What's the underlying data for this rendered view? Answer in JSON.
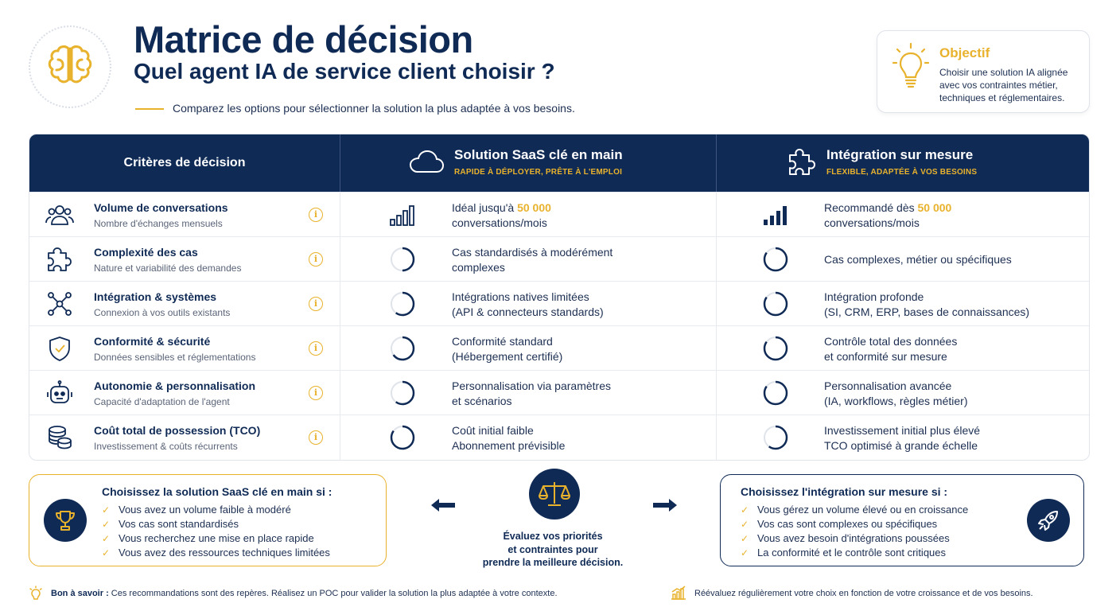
{
  "header": {
    "title": "Matrice de décision",
    "subtitle": "Quel agent IA de service client choisir ?",
    "tagline": "Comparez les options pour sélectionner la solution la plus adaptée à vos besoins.",
    "logo_icon": "brain-icon"
  },
  "objective": {
    "title": "Objectif",
    "text": "Choisir une solution IA alignée avec vos contraintes métier, techniques et réglementaires.",
    "icon": "lightbulb-icon"
  },
  "matrix": {
    "criteria_header": "Critères de décision",
    "saas": {
      "title": "Solution SaaS clé en main",
      "subtitle": "RAPIDE À DÉPLOYER, PRÊTE À L'EMPLOI",
      "icon": "cloud-icon"
    },
    "custom": {
      "title": "Intégration sur mesure",
      "subtitle": "FLEXIBLE, ADAPTÉE À VOS BESOINS",
      "icon": "puzzle-icon"
    },
    "rows": [
      {
        "title": "Volume de conversations",
        "sub": "Nombre d'échanges mensuels",
        "icon": "users-icon",
        "saas_l1": "Idéal jusqu'à ",
        "saas_hl": "50 000",
        "saas_l2": "conversations/mois",
        "custom_l1": "Recommandé dès ",
        "custom_hl": "50 000",
        "custom_l2": "conversations/mois"
      },
      {
        "title": "Complexité des cas",
        "sub": "Nature et variabilité des demandes",
        "icon": "puzzle-icon",
        "saas_l1": "Cas standardisés à modérément",
        "saas_l2": "complexes",
        "custom_l1": "Cas complexes, métier ou spécifiques",
        "saas_score": 0.5,
        "custom_score": 0.85
      },
      {
        "title": "Intégration & systèmes",
        "sub": "Connexion à vos outils existants",
        "icon": "network-icon",
        "saas_l1": "Intégrations natives limitées",
        "saas_l2": "(API & connecteurs standards)",
        "custom_l1": "Intégration profonde",
        "custom_l2": "(SI, CRM, ERP, bases de connaissances)",
        "saas_score": 0.6,
        "custom_score": 0.85
      },
      {
        "title": "Conformité & sécurité",
        "sub": "Données sensibles et réglementations",
        "icon": "shield-icon",
        "saas_l1": "Conformité standard",
        "saas_l2": "(Hébergement certifié)",
        "custom_l1": "Contrôle total des données",
        "custom_l2": "et conformité sur mesure",
        "saas_score": 0.65,
        "custom_score": 0.85
      },
      {
        "title": "Autonomie & personnalisation",
        "sub": "Capacité d'adaptation de l'agent",
        "icon": "robot-icon",
        "saas_l1": "Personnalisation via paramètres",
        "saas_l2": "et scénarios",
        "custom_l1": "Personnalisation avancée",
        "custom_l2": "(IA, workflows, règles métier)",
        "saas_score": 0.6,
        "custom_score": 0.85
      },
      {
        "title": "Coût total de possession (TCO)",
        "sub": "Investissement & coûts récurrents",
        "icon": "coins-icon",
        "saas_l1": "Coût initial faible",
        "saas_l2": "Abonnement prévisible",
        "custom_l1": "Investissement initial plus élevé",
        "custom_l2": "TCO optimisé à grande échelle",
        "saas_score": 0.85,
        "custom_score": 0.6
      }
    ]
  },
  "choose_saas": {
    "title": "Choisissez la solution SaaS clé en main si :",
    "items": [
      "Vous avez un volume faible à modéré",
      "Vos cas sont standardisés",
      "Vous recherchez une mise en place rapide",
      "Vous avez des ressources techniques limitées"
    ],
    "icon": "trophy-icon"
  },
  "choose_custom": {
    "title": "Choisissez l'intégration sur mesure si :",
    "items": [
      "Vous gérez un volume élevé ou en croissance",
      "Vos cas sont complexes ou spécifiques",
      "Vous avez besoin d'intégrations poussées",
      "La conformité et le contrôle sont critiques"
    ],
    "icon": "rocket-icon"
  },
  "center": {
    "icon": "scale-icon",
    "line1": "Évaluez vos priorités",
    "line2": "et contraintes pour",
    "line3": "prendre la meilleure décision."
  },
  "footer": {
    "left_bold": "Bon à savoir :",
    "left_text": " Ces recommandations sont des repères. Réalisez un POC pour valider la solution la plus adaptée à votre contexte.",
    "right_text": "Réévaluez régulièrement votre choix en fonction de votre croissance et de vos besoins."
  },
  "colors": {
    "navy": "#0f2a55",
    "gold": "#e9b22d",
    "border": "#e1e5ec"
  }
}
